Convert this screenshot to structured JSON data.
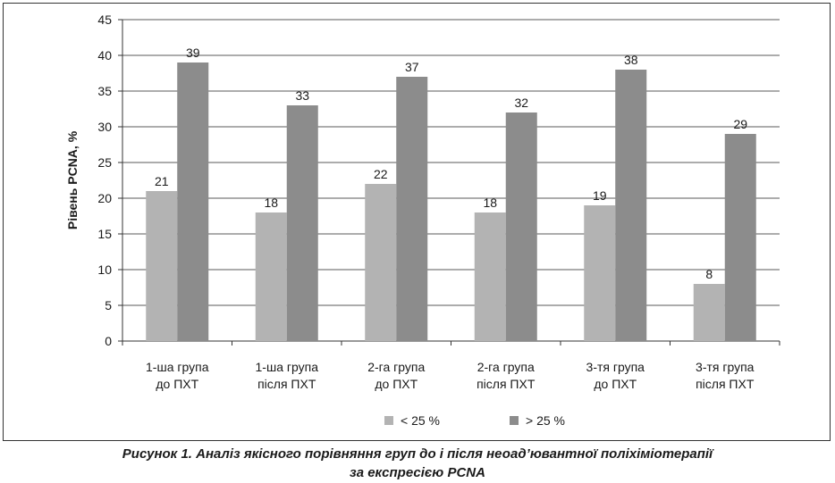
{
  "figure": {
    "caption_line1": "Рисунок 1. Аналіз якісного порівняння груп до і після неоад’ювантної поліхіміотерапії",
    "caption_line2": "за експресією PCNA"
  },
  "chart_data": {
    "type": "bar",
    "title": "",
    "xlabel": "",
    "ylabel": "Рівень PCNA, %",
    "ylim": [
      0,
      45
    ],
    "yticks": [
      0,
      5,
      10,
      15,
      20,
      25,
      30,
      35,
      40,
      45
    ],
    "grid": true,
    "legend_position": "bottom",
    "categories": [
      [
        "1-ша група",
        "до ПХТ"
      ],
      [
        "1-ша група",
        "після ПХТ"
      ],
      [
        "2-га група",
        "до ПХТ"
      ],
      [
        "2-га група",
        "після ПХТ"
      ],
      [
        "3-тя група",
        "до ПХТ"
      ],
      [
        "3-тя група",
        "після ПХТ"
      ]
    ],
    "series": [
      {
        "name": "< 25 %",
        "color": "#b3b3b3",
        "values": [
          21,
          18,
          22,
          18,
          19,
          8
        ]
      },
      {
        "name": "> 25 %",
        "color": "#8c8c8c",
        "values": [
          39,
          33,
          37,
          32,
          38,
          29
        ]
      }
    ]
  }
}
